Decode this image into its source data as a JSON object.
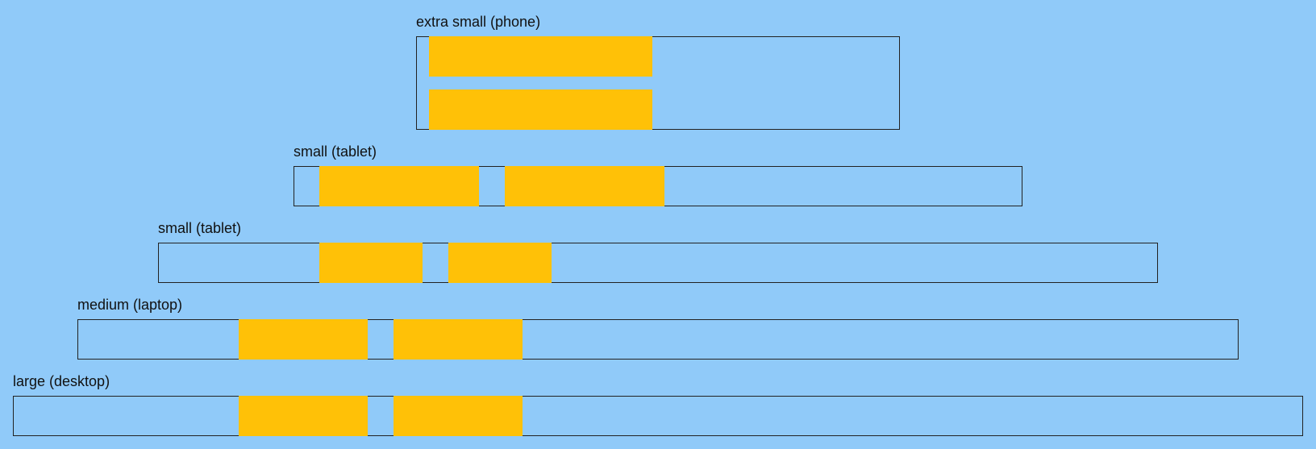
{
  "colors": {
    "background": "#90CAF9",
    "block": "#FFC107",
    "border": "#222222"
  },
  "breakpoints": [
    {
      "label": "extra small (phone)"
    },
    {
      "label": "small (tablet)"
    },
    {
      "label": "small (tablet)"
    },
    {
      "label": "medium (laptop)"
    },
    {
      "label": "large (desktop)"
    }
  ]
}
